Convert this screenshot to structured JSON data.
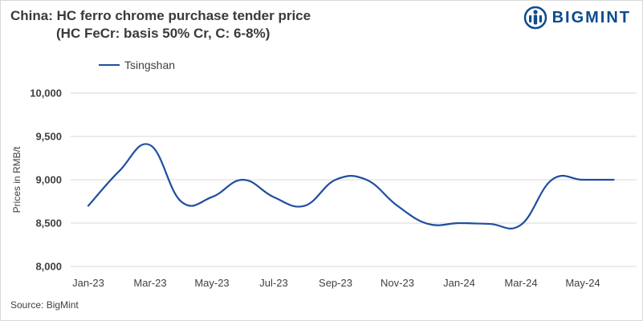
{
  "title_line1": "China: HC ferro chrome purchase tender price",
  "title_line2": "(HC FeCr: basis 50% Cr, C: 6-8%)",
  "logo_text": "BIGMINT",
  "source": "Source: BigMint",
  "colors": {
    "series": "#1f4e9e",
    "logo": "#0e4b8e",
    "grid": "#d9d9d9"
  },
  "chart_data": {
    "type": "line",
    "ylabel": "Prices in RMB/t",
    "ylim": [
      8000,
      10000
    ],
    "yticks": [
      "8,000",
      "8,500",
      "9,000",
      "9,500",
      "10,000"
    ],
    "ytick_values": [
      8000,
      8500,
      9000,
      9500,
      10000
    ],
    "xtick_labels": [
      "Jan-23",
      "Mar-23",
      "May-23",
      "Jul-23",
      "Sep-23",
      "Nov-23",
      "Jan-24",
      "Mar-24",
      "May-24"
    ],
    "x": [
      "Jan-23",
      "Feb-23",
      "Mar-23",
      "Apr-23",
      "May-23",
      "Jun-23",
      "Jul-23",
      "Aug-23",
      "Sep-23",
      "Oct-23",
      "Nov-23",
      "Dec-23",
      "Jan-24",
      "Feb-24",
      "Mar-24",
      "Apr-24",
      "May-24",
      "Jun-24"
    ],
    "legend_position": "top-left",
    "grid": "horizontal",
    "series": [
      {
        "name": "Tsingshan",
        "values": [
          8700,
          9100,
          9400,
          8750,
          8800,
          9000,
          8800,
          8700,
          9000,
          9000,
          8700,
          8490,
          8500,
          8490,
          8480,
          9000,
          9000,
          9000
        ]
      }
    ]
  }
}
